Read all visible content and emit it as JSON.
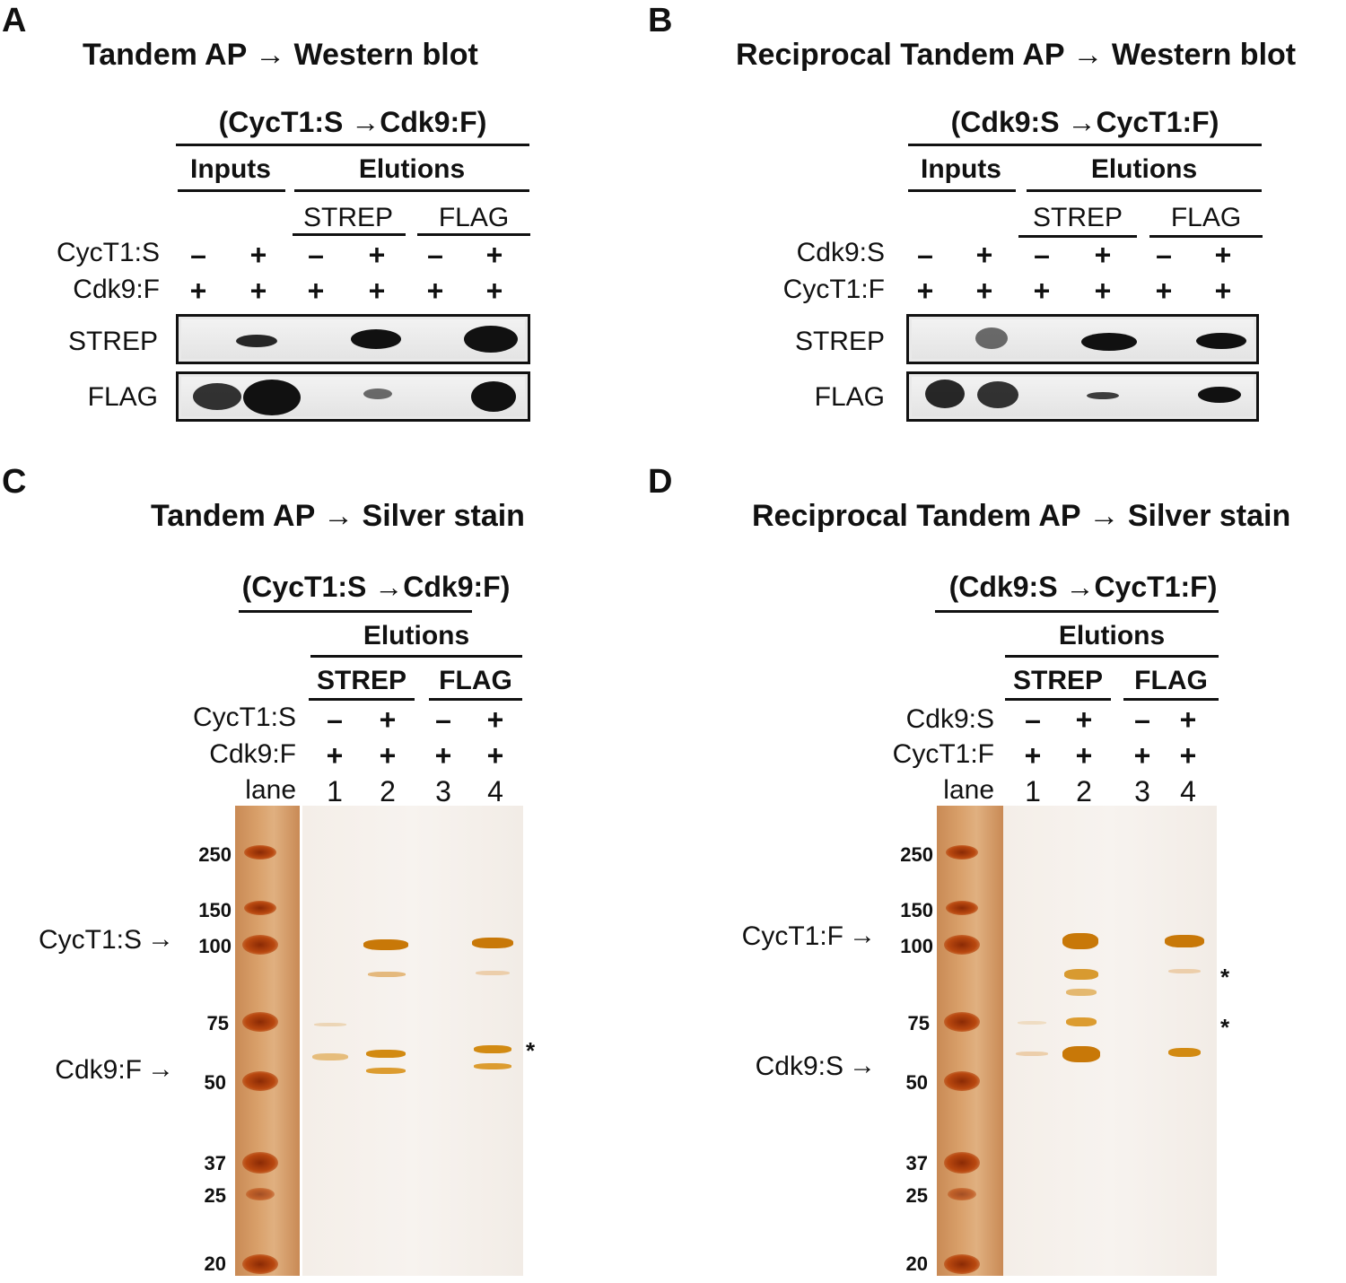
{
  "panels": {
    "A": {
      "letter": "A",
      "title": "Tandem AP → Western blot",
      "construct": "(CycT1:S →Cdk9:F)",
      "group_inputs": "Inputs",
      "group_elutions": "Elutions",
      "strep": "STREP",
      "flag": "FLAG",
      "row1_label": "CycT1:S",
      "row2_label": "Cdk9:F",
      "row1": [
        "–",
        "+",
        "–",
        "+",
        "–",
        "+"
      ],
      "row2": [
        "+",
        "+",
        "+",
        "+",
        "+",
        "+"
      ],
      "blot1_label": "STREP",
      "blot2_label": "FLAG"
    },
    "B": {
      "letter": "B",
      "title": "Reciprocal Tandem AP → Western blot",
      "construct": "(Cdk9:S →CycT1:F)",
      "group_inputs": "Inputs",
      "group_elutions": "Elutions",
      "strep": "STREP",
      "flag": "FLAG",
      "row1_label": "Cdk9:S",
      "row2_label": "CycT1:F",
      "row1": [
        "–",
        "+",
        "–",
        "+",
        "–",
        "+"
      ],
      "row2": [
        "+",
        "+",
        "+",
        "+",
        "+",
        "+"
      ],
      "blot1_label": "STREP",
      "blot2_label": "FLAG"
    },
    "C": {
      "letter": "C",
      "title": "Tandem AP → Silver stain",
      "construct": "(CycT1:S →Cdk9:F)",
      "group_elutions": "Elutions",
      "strep": "STREP",
      "flag": "FLAG",
      "row1_label": "CycT1:S",
      "row2_label": "Cdk9:F",
      "lane_label": "lane",
      "row1": [
        "–",
        "+",
        "–",
        "+"
      ],
      "row2": [
        "+",
        "+",
        "+",
        "+"
      ],
      "lanes": [
        "1",
        "2",
        "3",
        "4"
      ],
      "mw": [
        "250",
        "150",
        "100",
        "75",
        "50",
        "37",
        "25",
        "20"
      ],
      "annot_top": "CycT1:S",
      "annot_bottom": "Cdk9:F",
      "star": "*"
    },
    "D": {
      "letter": "D",
      "title": "Reciprocal Tandem AP → Silver stain",
      "construct": "(Cdk9:S →CycT1:F)",
      "group_elutions": "Elutions",
      "strep": "STREP",
      "flag": "FLAG",
      "row1_label": "Cdk9:S",
      "row2_label": "CycT1:F",
      "lane_label": "lane",
      "row1": [
        "–",
        "+",
        "–",
        "+"
      ],
      "row2": [
        "+",
        "+",
        "+",
        "+"
      ],
      "lanes": [
        "1",
        "2",
        "3",
        "4"
      ],
      "mw": [
        "250",
        "150",
        "100",
        "75",
        "50",
        "37",
        "25",
        "20"
      ],
      "annot_top": "CycT1:F",
      "annot_bottom": "Cdk9:S",
      "star1": "*",
      "star2": "*"
    }
  },
  "colors": {
    "ink": "#111111",
    "silver_band": "#d98a10",
    "ladder_band": "#a8360a"
  }
}
